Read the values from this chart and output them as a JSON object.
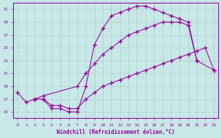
{
  "bg_color": "#c8e8e8",
  "grid_color": "#aacccc",
  "line_color": "#990099",
  "xlabel": "Windchill (Refroidissement éolien,°C)",
  "xlim": [
    -0.5,
    23.5
  ],
  "ylim": [
    14,
    32
  ],
  "yticks": [
    15,
    17,
    19,
    21,
    23,
    25,
    27,
    29,
    31
  ],
  "xticks": [
    0,
    1,
    2,
    3,
    4,
    5,
    6,
    7,
    8,
    9,
    10,
    11,
    12,
    13,
    14,
    15,
    16,
    17,
    18,
    19,
    20,
    21,
    22,
    23
  ],
  "line_A_x": [
    0,
    1,
    2,
    3,
    4,
    5,
    6,
    7,
    8,
    9,
    10,
    11,
    12,
    13,
    14,
    15,
    16,
    17,
    18,
    19,
    20,
    21
  ],
  "line_A_y": [
    18,
    16.5,
    17,
    17,
    15.5,
    15.5,
    15,
    15,
    19,
    25.5,
    28,
    30,
    30.5,
    31,
    31.5,
    31.5,
    31,
    30.5,
    30,
    29.5,
    29,
    23
  ],
  "line_B_x": [
    2,
    3,
    7,
    8,
    9,
    10,
    11,
    12,
    13,
    14,
    15,
    16,
    17,
    18,
    19,
    20,
    21,
    23
  ],
  "line_B_y": [
    17,
    17.5,
    19,
    21,
    22.5,
    24,
    25,
    26,
    27,
    27.5,
    28,
    28.5,
    29,
    29,
    29,
    28.5,
    23,
    21.5
  ],
  "line_C_x": [
    2,
    3,
    4,
    5,
    6,
    7,
    8,
    9,
    10,
    11,
    12,
    13,
    14,
    15,
    16,
    17,
    18,
    19,
    20,
    21,
    22,
    23
  ],
  "line_C_y": [
    17,
    17,
    16,
    16,
    15.5,
    15.5,
    17,
    18,
    19,
    19.5,
    20,
    20.5,
    21,
    21.5,
    22,
    22.5,
    23,
    23.5,
    24,
    24.5,
    25,
    21.5
  ]
}
